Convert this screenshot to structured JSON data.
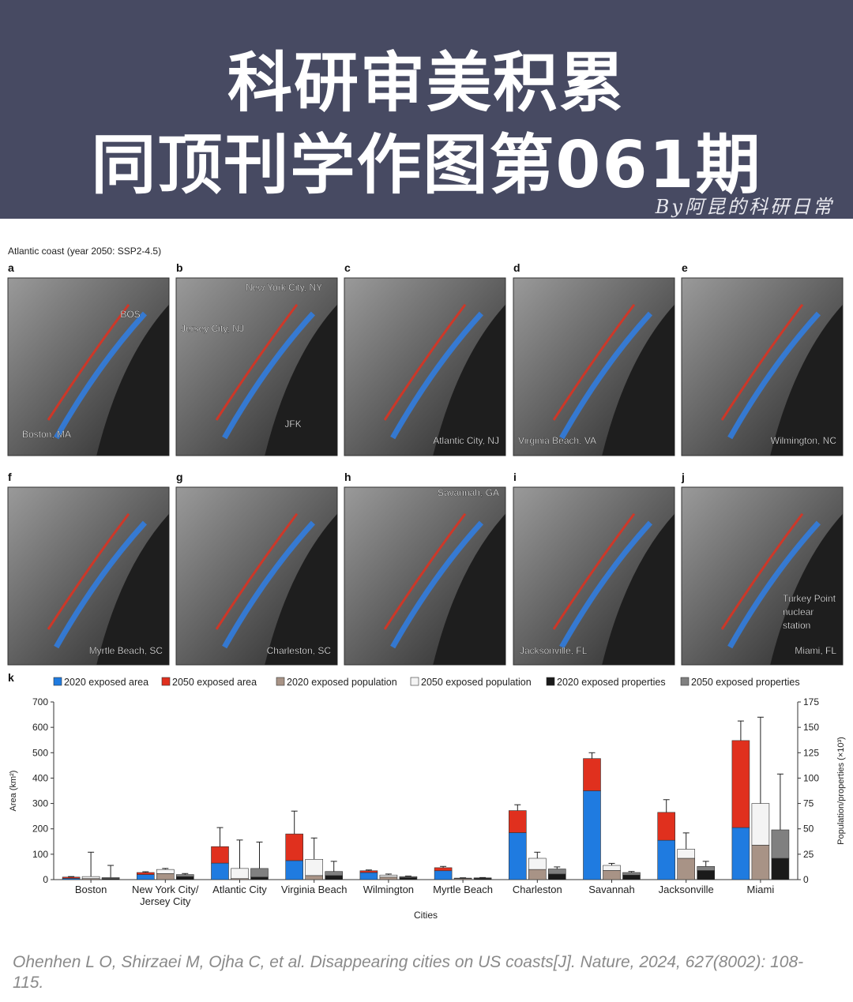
{
  "header": {
    "title_line1": "科研审美积累",
    "title_line2": "同顶刊学作图第061期",
    "byline": "By阿昆的科研日常"
  },
  "figure": {
    "title": "Atlantic coast (year 2050: SSP2-4.5)",
    "panels": [
      {
        "letter": "a",
        "labels": [
          "BOS",
          "Boston, MA"
        ]
      },
      {
        "letter": "b",
        "labels": [
          "New York City, NY",
          "Jersey City, NJ",
          "JFK"
        ]
      },
      {
        "letter": "c",
        "labels": [
          "Atlantic City, NJ"
        ]
      },
      {
        "letter": "d",
        "labels": [
          "Virginia Beach, VA"
        ]
      },
      {
        "letter": "e",
        "labels": [
          "Wilmington, NC"
        ]
      },
      {
        "letter": "f",
        "labels": [
          "Myrtle Beach, SC"
        ]
      },
      {
        "letter": "g",
        "labels": [
          "Charleston, SC"
        ]
      },
      {
        "letter": "h",
        "labels": [
          "Savannah, GA"
        ]
      },
      {
        "letter": "i",
        "labels": [
          "Jacksonville, FL"
        ]
      },
      {
        "letter": "j",
        "labels": [
          "Turkey Point",
          "nuclear",
          "station",
          "Miami, FL"
        ]
      }
    ]
  },
  "chart_data": {
    "type": "bar",
    "letter": "k",
    "x_label": "Cities",
    "y_label": "Area (km²)",
    "y2_label": "Population/properties (×10³)",
    "categories": [
      "Boston",
      "New York City/ Jersey City",
      "Atlantic City",
      "Virginia Beach",
      "Wilmington",
      "Myrtle Beach",
      "Charleston",
      "Savannah",
      "Jacksonville",
      "Miami"
    ],
    "ylim": [
      0,
      700
    ],
    "yticks": [
      0,
      100,
      200,
      300,
      400,
      500,
      600,
      700
    ],
    "y2lim": [
      0,
      175
    ],
    "y2ticks": [
      0,
      25,
      50,
      75,
      100,
      125,
      150,
      175
    ],
    "groups": [
      {
        "series": [
          {
            "name": "2020 exposed area",
            "color": "#1f7be0",
            "axis": "y",
            "values": [
              5,
              20,
              65,
              75,
              28,
              35,
              185,
              350,
              155,
              205
            ]
          },
          {
            "name": "2050 exposed area",
            "color": "#e0301e",
            "axis": "y",
            "values": [
              5,
              8,
              65,
              105,
              7,
              12,
              87,
              127,
              110,
              343
            ],
            "errors": [
              2,
              3,
              75,
              90,
              3,
              5,
              23,
              23,
              50,
              77
            ]
          }
        ]
      },
      {
        "series": [
          {
            "name": "2020 exposed population",
            "color": "#a89386",
            "axis": "y2",
            "values": [
              1,
              6,
              1,
              4,
              2.5,
              1,
              10,
              9,
              21,
              34
            ]
          },
          {
            "name": "2050 exposed population",
            "color": "#f4f4f4",
            "axis": "y2",
            "values": [
              2,
              4,
              10,
              16,
              2,
              0.5,
              11,
              5,
              9,
              41
            ],
            "errors": [
              24,
              1,
              28,
              21,
              1,
              0.3,
              6,
              2,
              16,
              85
            ]
          }
        ]
      },
      {
        "series": [
          {
            "name": "2020 exposed properties",
            "color": "#1a1a1a",
            "axis": "y2",
            "values": [
              1,
              3,
              2.5,
              4,
              2,
              1.25,
              5.5,
              4.5,
              9,
              21
            ]
          },
          {
            "name": "2050 exposed properties",
            "color": "#808080",
            "axis": "y2",
            "values": [
              1,
              2,
              8.5,
              4,
              1,
              0.5,
              5,
              2.5,
              4,
              28
            ],
            "errors": [
              12,
              1,
              26,
              10,
              0.5,
              0.3,
              2,
              1,
              5,
              55
            ]
          }
        ]
      }
    ]
  },
  "citation": "Ohenhen L O, Shirzaei M, Ojha C, et al. Disappearing cities on US coasts[J]. Nature, 2024, 627(8002): 108-115."
}
